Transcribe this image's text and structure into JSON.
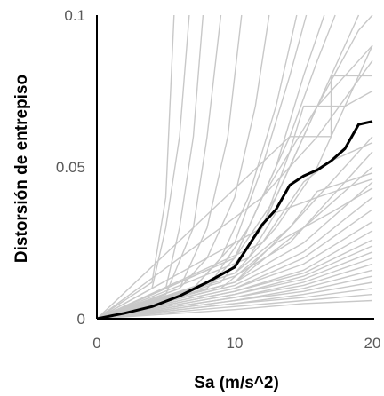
{
  "chart_data": {
    "type": "line",
    "title": "",
    "xlabel": "Sa (m/s^2)",
    "ylabel": "Distorsión de entrepiso",
    "xlim": [
      0,
      20
    ],
    "ylim": [
      0,
      0.1
    ],
    "x_ticks": [
      0,
      10,
      20
    ],
    "x_tick_labels": [
      "0",
      "10",
      "20"
    ],
    "y_ticks": [
      0,
      0.05,
      0.1
    ],
    "y_tick_labels": [
      "0",
      "0.05",
      "0.1"
    ],
    "grid": false,
    "legend": "none",
    "colors": {
      "records": "#c8c8c8",
      "median": "#000000",
      "axis": "#000000",
      "tick_text": "#595959"
    },
    "series": [
      {
        "values": [
          [
            0,
            0
          ],
          [
            2,
            0.0018
          ],
          [
            4,
            0.004
          ],
          [
            6,
            0.0075
          ],
          [
            8,
            0.012
          ],
          [
            10,
            0.017
          ],
          [
            11,
            0.024
          ],
          [
            12,
            0.031
          ],
          [
            13,
            0.036
          ],
          [
            14,
            0.044
          ],
          [
            15,
            0.047
          ],
          [
            16,
            0.049
          ],
          [
            17,
            0.052
          ],
          [
            18,
            0.056
          ],
          [
            19,
            0.064
          ],
          [
            20,
            0.065
          ]
        ],
        "style": "median"
      },
      {
        "values": [
          [
            0,
            0
          ],
          [
            4,
            0.01
          ],
          [
            5,
            0.03
          ],
          [
            6,
            0.06
          ],
          [
            6.7,
            0.1
          ]
        ]
      },
      {
        "values": [
          [
            0,
            0
          ],
          [
            4,
            0.012
          ],
          [
            5,
            0.04
          ],
          [
            5.6,
            0.1
          ]
        ]
      },
      {
        "values": [
          [
            0,
            0
          ],
          [
            5,
            0.01
          ],
          [
            6,
            0.03
          ],
          [
            7,
            0.06
          ],
          [
            7.7,
            0.1
          ]
        ]
      },
      {
        "values": [
          [
            0,
            0
          ],
          [
            5,
            0.008
          ],
          [
            7,
            0.03
          ],
          [
            8,
            0.06
          ],
          [
            9,
            0.1
          ]
        ]
      },
      {
        "values": [
          [
            0,
            0
          ],
          [
            6,
            0.01
          ],
          [
            8,
            0.03
          ],
          [
            9.5,
            0.06
          ],
          [
            10.5,
            0.1
          ]
        ]
      },
      {
        "values": [
          [
            0,
            0
          ],
          [
            6,
            0.01
          ],
          [
            8,
            0.02
          ],
          [
            10,
            0.04
          ],
          [
            11.5,
            0.07
          ],
          [
            12.5,
            0.1
          ]
        ]
      },
      {
        "values": [
          [
            0,
            0
          ],
          [
            7,
            0.01
          ],
          [
            9,
            0.02
          ],
          [
            11,
            0.04
          ],
          [
            13,
            0.07
          ],
          [
            14.5,
            0.1
          ]
        ]
      },
      {
        "values": [
          [
            0,
            0
          ],
          [
            7,
            0.01
          ],
          [
            10,
            0.025
          ],
          [
            12,
            0.05
          ],
          [
            14,
            0.08
          ],
          [
            15.2,
            0.1
          ]
        ]
      },
      {
        "values": [
          [
            0,
            0
          ],
          [
            8,
            0.01
          ],
          [
            10,
            0.02
          ],
          [
            13,
            0.05
          ],
          [
            15,
            0.08
          ],
          [
            16.5,
            0.1
          ]
        ]
      },
      {
        "values": [
          [
            0,
            0
          ],
          [
            8,
            0.01
          ],
          [
            11,
            0.03
          ],
          [
            14,
            0.06
          ],
          [
            16,
            0.085
          ],
          [
            17.3,
            0.1
          ]
        ]
      },
      {
        "values": [
          [
            0,
            0
          ],
          [
            9,
            0.012
          ],
          [
            12,
            0.03
          ],
          [
            15,
            0.06
          ],
          [
            18,
            0.09
          ],
          [
            19,
            0.1
          ]
        ]
      },
      {
        "values": [
          [
            0,
            0
          ],
          [
            10,
            0.02
          ],
          [
            13,
            0.04
          ],
          [
            16,
            0.07
          ],
          [
            19,
            0.095
          ],
          [
            20,
            0.1
          ]
        ]
      },
      {
        "values": [
          [
            0,
            0
          ],
          [
            10,
            0.015
          ],
          [
            13,
            0.03
          ],
          [
            16,
            0.05
          ],
          [
            19,
            0.08
          ],
          [
            20,
            0.09
          ]
        ]
      },
      {
        "values": [
          [
            0,
            0
          ],
          [
            10,
            0.02
          ],
          [
            12,
            0.04
          ],
          [
            14,
            0.05
          ],
          [
            16,
            0.06
          ],
          [
            20,
            0.085
          ]
        ]
      },
      {
        "values": [
          [
            0,
            0
          ],
          [
            12,
            0.03
          ],
          [
            14,
            0.055
          ],
          [
            15,
            0.07
          ],
          [
            18,
            0.07
          ],
          [
            20,
            0.075
          ]
        ]
      },
      {
        "values": [
          [
            0,
            0
          ],
          [
            10,
            0.015
          ],
          [
            14,
            0.03
          ],
          [
            17,
            0.045
          ],
          [
            20,
            0.06
          ]
        ]
      },
      {
        "values": [
          [
            0,
            0
          ],
          [
            10,
            0.014
          ],
          [
            14,
            0.025
          ],
          [
            17,
            0.04
          ],
          [
            20,
            0.055
          ]
        ]
      },
      {
        "values": [
          [
            0,
            0
          ],
          [
            10,
            0.012
          ],
          [
            15,
            0.03
          ],
          [
            20,
            0.05
          ]
        ]
      },
      {
        "values": [
          [
            0,
            0
          ],
          [
            10,
            0.012
          ],
          [
            15,
            0.025
          ],
          [
            20,
            0.045
          ]
        ]
      },
      {
        "values": [
          [
            0,
            0
          ],
          [
            10,
            0.011
          ],
          [
            15,
            0.022
          ],
          [
            20,
            0.04
          ]
        ]
      },
      {
        "values": [
          [
            0,
            0
          ],
          [
            10,
            0.01
          ],
          [
            15,
            0.02
          ],
          [
            20,
            0.036
          ]
        ]
      },
      {
        "values": [
          [
            0,
            0
          ],
          [
            10,
            0.01
          ],
          [
            15,
            0.018
          ],
          [
            20,
            0.032
          ]
        ]
      },
      {
        "values": [
          [
            0,
            0
          ],
          [
            10,
            0.009
          ],
          [
            15,
            0.016
          ],
          [
            20,
            0.029
          ]
        ]
      },
      {
        "values": [
          [
            0,
            0
          ],
          [
            10,
            0.009
          ],
          [
            15,
            0.015
          ],
          [
            20,
            0.026
          ]
        ]
      },
      {
        "values": [
          [
            0,
            0
          ],
          [
            10,
            0.008
          ],
          [
            15,
            0.014
          ],
          [
            20,
            0.024
          ]
        ]
      },
      {
        "values": [
          [
            0,
            0
          ],
          [
            10,
            0.008
          ],
          [
            15,
            0.013
          ],
          [
            20,
            0.022
          ]
        ]
      },
      {
        "values": [
          [
            0,
            0
          ],
          [
            10,
            0.007
          ],
          [
            15,
            0.012
          ],
          [
            20,
            0.02
          ]
        ]
      },
      {
        "values": [
          [
            0,
            0
          ],
          [
            10,
            0.007
          ],
          [
            15,
            0.011
          ],
          [
            20,
            0.018
          ]
        ]
      },
      {
        "values": [
          [
            0,
            0
          ],
          [
            10,
            0.006
          ],
          [
            15,
            0.01
          ],
          [
            20,
            0.016
          ]
        ]
      },
      {
        "values": [
          [
            0,
            0
          ],
          [
            10,
            0.006
          ],
          [
            15,
            0.009
          ],
          [
            20,
            0.014
          ]
        ]
      },
      {
        "values": [
          [
            0,
            0
          ],
          [
            10,
            0.005
          ],
          [
            15,
            0.008
          ],
          [
            20,
            0.012
          ]
        ]
      },
      {
        "values": [
          [
            0,
            0
          ],
          [
            10,
            0.005
          ],
          [
            15,
            0.007
          ],
          [
            20,
            0.01
          ]
        ]
      },
      {
        "values": [
          [
            0,
            0
          ],
          [
            10,
            0.004
          ],
          [
            15,
            0.006
          ],
          [
            20,
            0.008
          ]
        ]
      },
      {
        "values": [
          [
            0,
            0
          ],
          [
            10,
            0.003
          ],
          [
            15,
            0.005
          ],
          [
            20,
            0.006
          ]
        ]
      },
      {
        "values": [
          [
            0,
            0
          ],
          [
            10,
            0.012
          ],
          [
            14,
            0.03
          ],
          [
            16,
            0.042
          ],
          [
            20,
            0.048
          ]
        ]
      },
      {
        "values": [
          [
            0,
            0
          ],
          [
            9,
            0.01
          ],
          [
            13,
            0.025
          ],
          [
            17,
            0.035
          ],
          [
            20,
            0.043
          ]
        ]
      },
      {
        "values": [
          [
            0,
            0
          ],
          [
            11,
            0.02
          ],
          [
            13,
            0.035
          ],
          [
            16,
            0.04
          ],
          [
            20,
            0.046
          ]
        ]
      },
      {
        "values": [
          [
            0,
            0
          ],
          [
            12,
            0.025
          ],
          [
            15,
            0.045
          ],
          [
            17,
            0.052
          ],
          [
            20,
            0.058
          ]
        ]
      },
      {
        "values": [
          [
            0,
            0
          ],
          [
            12,
            0.04
          ],
          [
            16,
            0.07
          ],
          [
            19,
            0.085
          ],
          [
            20,
            0.09
          ]
        ]
      },
      {
        "values": [
          [
            0,
            0
          ],
          [
            14,
            0.06
          ],
          [
            17,
            0.06
          ],
          [
            17,
            0.08
          ],
          [
            20,
            0.08
          ]
        ]
      }
    ]
  }
}
